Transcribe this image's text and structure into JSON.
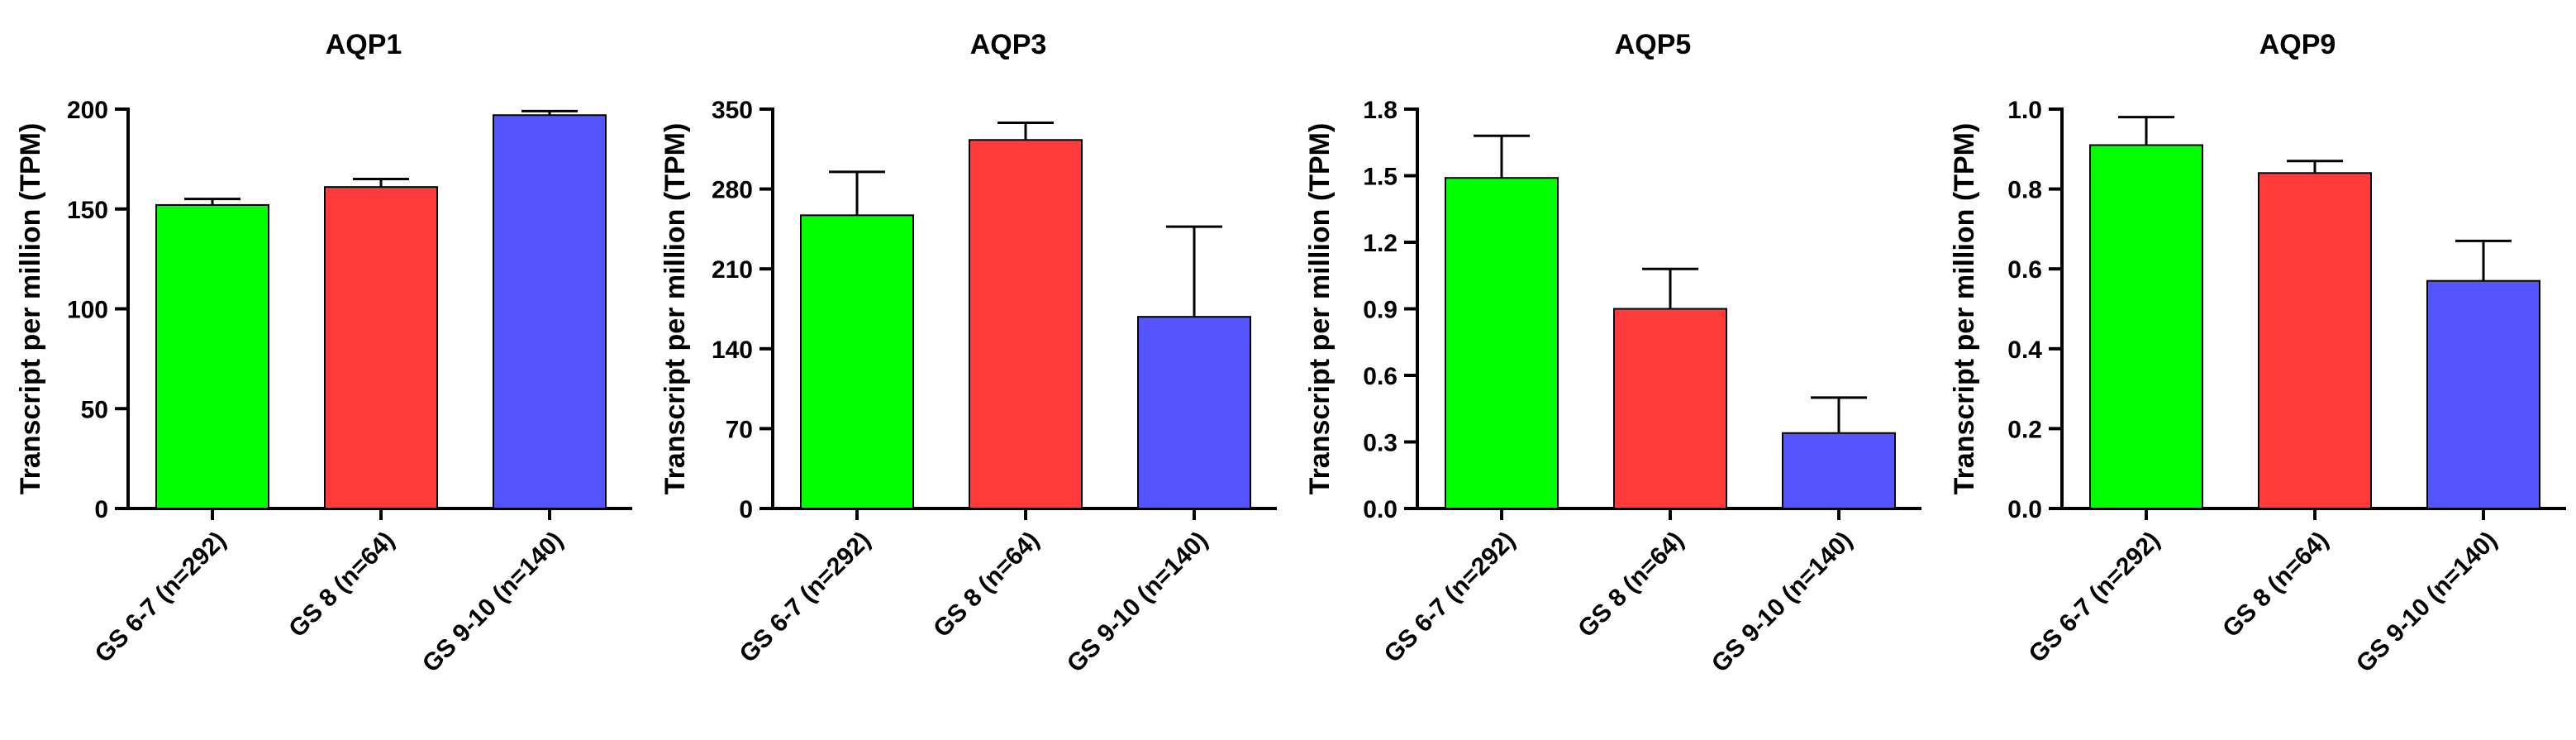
{
  "colors": {
    "bar_fills": [
      "#00ff00",
      "#ff3b3b",
      "#5555ff"
    ],
    "axis": "#000000"
  },
  "chart_data": [
    {
      "type": "bar",
      "title": "AQP1",
      "ylabel": "Transcript per million (TPM)",
      "categories": [
        "GS 6-7 (n=292)",
        "GS 8 (n=64)",
        "GS 9-10 (n=140)"
      ],
      "values": [
        152,
        161,
        197
      ],
      "errors": [
        3,
        4,
        2
      ],
      "ylim": [
        0,
        200
      ],
      "yticks": [
        0,
        50,
        100,
        150,
        200
      ],
      "ytick_labels": [
        "0",
        "50",
        "100",
        "150",
        "200"
      ]
    },
    {
      "type": "bar",
      "title": "AQP3",
      "ylabel": "Transcript per million (TPM)",
      "categories": [
        "GS 6-7 (n=292)",
        "GS 8 (n=64)",
        "GS 9-10 (n=140)"
      ],
      "values": [
        257,
        323,
        168
      ],
      "errors": [
        38,
        15,
        79
      ],
      "ylim": [
        0,
        350
      ],
      "yticks": [
        0,
        70,
        140,
        210,
        280,
        350
      ],
      "ytick_labels": [
        "0",
        "70",
        "140",
        "210",
        "280",
        "350"
      ]
    },
    {
      "type": "bar",
      "title": "AQP5",
      "ylabel": "Transcript per million (TPM)",
      "categories": [
        "GS 6-7 (n=292)",
        "GS 8 (n=64)",
        "GS 9-10 (n=140)"
      ],
      "values": [
        1.49,
        0.9,
        0.34
      ],
      "errors": [
        0.19,
        0.18,
        0.16
      ],
      "ylim": [
        0,
        1.8
      ],
      "yticks": [
        0,
        0.3,
        0.6,
        0.9,
        1.2,
        1.5,
        1.8
      ],
      "ytick_labels": [
        "0.0",
        "0.3",
        "0.6",
        "0.9",
        "1.2",
        "1.5",
        "1.8"
      ]
    },
    {
      "type": "bar",
      "title": "AQP9",
      "ylabel": "Transcript per million (TPM)",
      "categories": [
        "GS 6-7 (n=292)",
        "GS 8 (n=64)",
        "GS 9-10 (n=140)"
      ],
      "values": [
        0.91,
        0.84,
        0.57
      ],
      "errors": [
        0.07,
        0.03,
        0.1
      ],
      "ylim": [
        0,
        1.0
      ],
      "yticks": [
        0,
        0.2,
        0.4,
        0.6,
        0.8,
        1.0
      ],
      "ytick_labels": [
        "0.0",
        "0.2",
        "0.4",
        "0.6",
        "0.8",
        "1.0"
      ]
    }
  ]
}
